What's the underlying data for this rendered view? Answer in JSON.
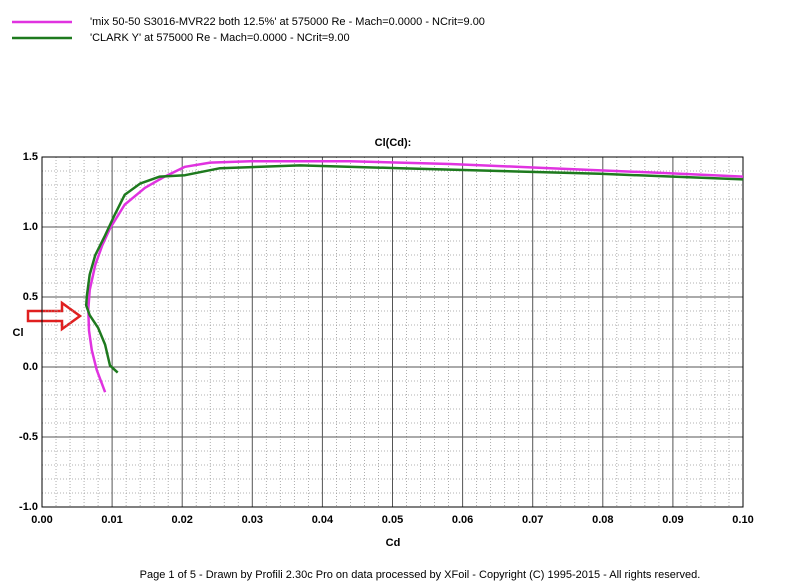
{
  "chart_data": {
    "type": "line",
    "title": "Cl(Cd):",
    "x_label": "Cd",
    "y_label": "Cl",
    "xlim": [
      0,
      0.1
    ],
    "ylim": [
      -1.0,
      1.5
    ],
    "xticks": [
      {
        "value": 0,
        "label": "0.00"
      },
      0.01,
      0.02,
      0.03,
      0.04,
      0.05,
      0.06,
      0.07,
      0.08,
      0.09,
      {
        "value": 0.1,
        "label": "0.10"
      }
    ],
    "yticks": [
      {
        "value": -1.0,
        "label": "-1.0"
      },
      -0.5,
      {
        "value": 0,
        "label": "0.0"
      },
      0.5,
      {
        "value": 1.0,
        "label": "1.0"
      },
      1.5
    ],
    "grid": true,
    "series": [
      {
        "name": "'mix 50-50 S3016-MVR22 both 12.5%' at 575000 Re - Mach=0.0000 - NCrit=9.00",
        "color": "#e033e0",
        "x": [
          0.009,
          0.0078,
          0.0071,
          0.0067,
          0.0066,
          0.0068,
          0.0076,
          0.0086,
          0.0097,
          0.0118,
          0.0147,
          0.0175,
          0.0204,
          0.024,
          0.0297,
          0.0439,
          0.0582,
          0.0725,
          0.0867,
          0.1
        ],
        "values": [
          -0.18,
          -0.02,
          0.12,
          0.26,
          0.41,
          0.55,
          0.73,
          0.87,
          0.99,
          1.16,
          1.28,
          1.36,
          1.43,
          1.46,
          1.47,
          1.47,
          1.45,
          1.42,
          1.39,
          1.36
        ]
      },
      {
        "name": "'CLARK Y' at 575000 Re - Mach=0.0000 - NCrit=9.00",
        "color": "#1e7a1e",
        "x": [
          0.0108,
          0.0097,
          0.009,
          0.008,
          0.0068,
          0.0063,
          0.0064,
          0.0068,
          0.0076,
          0.009,
          0.0104,
          0.0118,
          0.014,
          0.0168,
          0.0204,
          0.0254,
          0.0368,
          0.0511,
          0.0653,
          0.0796,
          0.1
        ],
        "values": [
          -0.04,
          0.01,
          0.16,
          0.28,
          0.37,
          0.44,
          0.51,
          0.66,
          0.8,
          0.94,
          1.09,
          1.23,
          1.31,
          1.36,
          1.37,
          1.42,
          1.44,
          1.42,
          1.4,
          1.38,
          1.34
        ]
      }
    ],
    "footer": "Page 1 of 5   -   Drawn by Profili 2.30c Pro on data processed by  XFoil - Copyright (C) 1995-2015 - All rights reserved."
  }
}
